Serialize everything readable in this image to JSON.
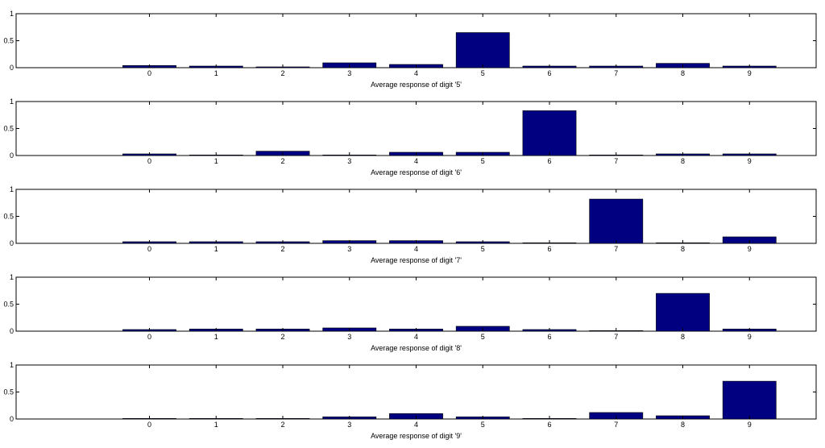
{
  "chart_data": [
    {
      "type": "bar",
      "categories": [
        "0",
        "1",
        "2",
        "3",
        "4",
        "5",
        "6",
        "7",
        "8",
        "9"
      ],
      "values": [
        0.04,
        0.03,
        0.015,
        0.09,
        0.06,
        0.65,
        0.03,
        0.03,
        0.08,
        0.03
      ],
      "xlabel": "Average response of digit '5'",
      "ylim": [
        0,
        1
      ],
      "yticks": [
        "0",
        "0.5",
        "1"
      ],
      "xlim": [
        -2,
        10
      ]
    },
    {
      "type": "bar",
      "categories": [
        "0",
        "1",
        "2",
        "3",
        "4",
        "5",
        "6",
        "7",
        "8",
        "9"
      ],
      "values": [
        0.03,
        0.01,
        0.08,
        0.01,
        0.06,
        0.06,
        0.83,
        0.01,
        0.03,
        0.03
      ],
      "xlabel": "Average response of digit '6'",
      "ylim": [
        0,
        1
      ],
      "yticks": [
        "0",
        "0.5",
        "1"
      ],
      "xlim": [
        -2,
        10
      ]
    },
    {
      "type": "bar",
      "categories": [
        "0",
        "1",
        "2",
        "3",
        "4",
        "5",
        "6",
        "7",
        "8",
        "9"
      ],
      "values": [
        0.03,
        0.03,
        0.03,
        0.05,
        0.05,
        0.03,
        0.01,
        0.82,
        0.01,
        0.12
      ],
      "xlabel": "Average response of digit '7'",
      "ylim": [
        0,
        1
      ],
      "yticks": [
        "0",
        "0.5",
        "1"
      ],
      "xlim": [
        -2,
        10
      ]
    },
    {
      "type": "bar",
      "categories": [
        "0",
        "1",
        "2",
        "3",
        "4",
        "5",
        "6",
        "7",
        "8",
        "9"
      ],
      "values": [
        0.03,
        0.04,
        0.04,
        0.06,
        0.04,
        0.09,
        0.03,
        0.01,
        0.7,
        0.04
      ],
      "xlabel": "Average response of digit '8'",
      "ylim": [
        0,
        1
      ],
      "yticks": [
        "0",
        "0.5",
        "1"
      ],
      "xlim": [
        -2,
        10
      ]
    },
    {
      "type": "bar",
      "categories": [
        "0",
        "1",
        "2",
        "3",
        "4",
        "5",
        "6",
        "7",
        "8",
        "9"
      ],
      "values": [
        0.01,
        0.01,
        0.01,
        0.04,
        0.1,
        0.04,
        0.01,
        0.12,
        0.06,
        0.7
      ],
      "xlabel": "Average response of digit '9'",
      "ylim": [
        0,
        1
      ],
      "yticks": [
        "0",
        "0.5",
        "1"
      ],
      "xlim": [
        -2,
        10
      ]
    }
  ],
  "colors": {
    "bar_fill": "#000080",
    "axes": "#000000",
    "background": "#ffffff"
  }
}
